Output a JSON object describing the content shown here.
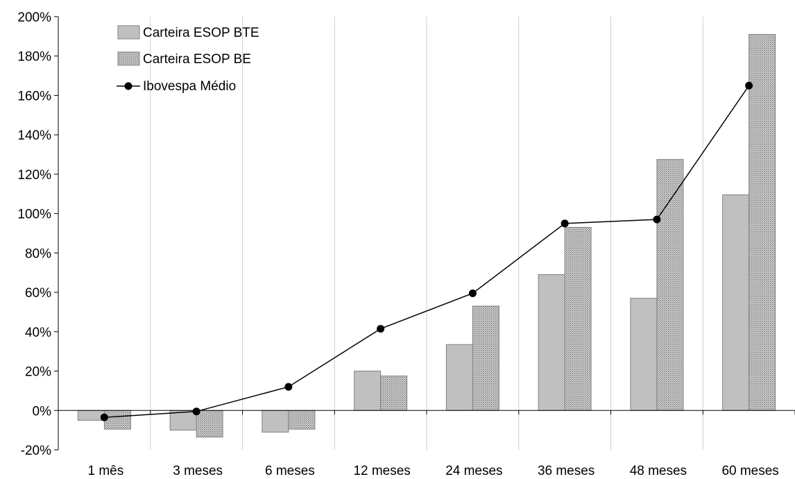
{
  "chart_data": {
    "type": "bar",
    "categories": [
      "1 mês",
      "3 meses",
      "6 meses",
      "12 meses",
      "24 meses",
      "36 meses",
      "48 meses",
      "60 meses"
    ],
    "series": [
      {
        "name": "Carteira ESOP BTE",
        "kind": "bar",
        "fill": "#c0c0c0",
        "values": [
          -5,
          -10,
          -11,
          20,
          33.5,
          69,
          57,
          109.5
        ]
      },
      {
        "name": "Carteira ESOP BE",
        "kind": "bar",
        "fill": "#a6a6a6",
        "pattern": "dotted",
        "values": [
          -9.5,
          -13.5,
          -9.5,
          17.5,
          53,
          93,
          127.5,
          191
        ]
      },
      {
        "name": "Ibovespa Médio",
        "kind": "line",
        "color": "#000000",
        "marker": "circle",
        "values": [
          -3.5,
          -0.5,
          12,
          41.5,
          59.5,
          95,
          97,
          165
        ]
      }
    ],
    "ylim": [
      -20,
      200
    ],
    "yticks": [
      -20,
      0,
      20,
      40,
      60,
      80,
      100,
      120,
      140,
      160,
      180,
      200
    ],
    "ytick_labels": [
      "-20%",
      "0%",
      "20%",
      "40%",
      "60%",
      "80%",
      "100%",
      "120%",
      "140%",
      "160%",
      "180%",
      "200%"
    ],
    "grid": "vertical",
    "legend_position": "top-left"
  }
}
